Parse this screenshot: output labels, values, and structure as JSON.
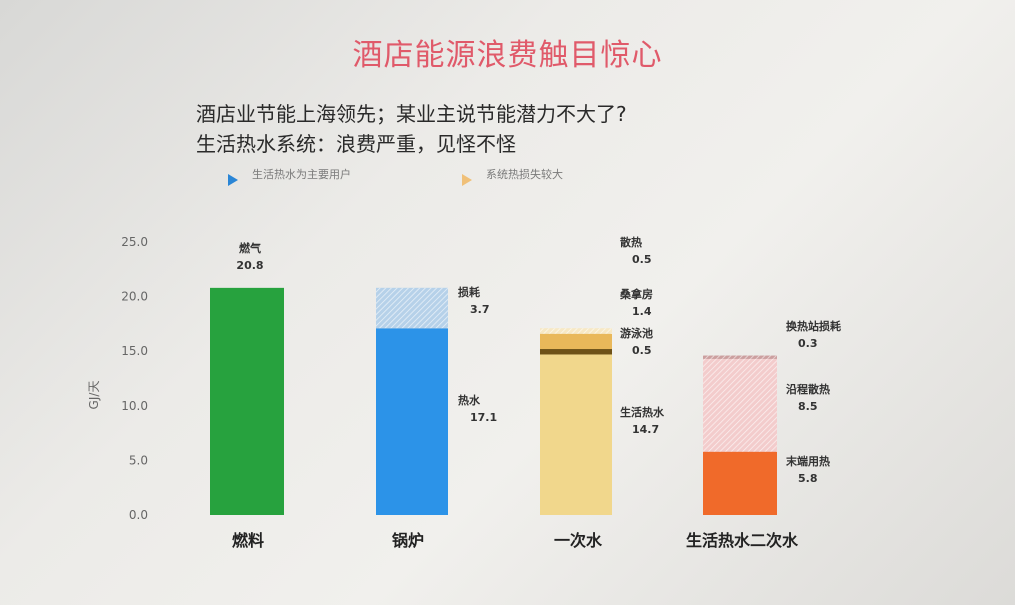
{
  "slide": {
    "title": "酒店能源浪费触目惊心",
    "subtitle_line1": "酒店业节能上海领先；某业主说节能潜力不大了?",
    "subtitle_line2": "生活热水系统：浪费严重，见怪不怪",
    "legend": [
      {
        "text": "生活热水为主要用户",
        "color": "#2a86d6"
      },
      {
        "text": "系统热损失较大",
        "color": "#f0c078"
      }
    ]
  },
  "chart_data": {
    "type": "bar",
    "stacked": true,
    "ylabel": "GJ/天",
    "ylim": [
      0,
      25
    ],
    "yticks": [
      "0.0",
      "5.0",
      "10.0",
      "15.0",
      "20.0",
      "25.0"
    ],
    "grid": false,
    "categories": [
      "燃料",
      "锅炉",
      "一次水",
      "生活热水二次水"
    ],
    "bars": [
      {
        "category": "燃料",
        "segments": [
          {
            "name": "燃气",
            "value": 20.8,
            "color": "#27a23e",
            "pattern": "solid"
          }
        ]
      },
      {
        "category": "锅炉",
        "segments": [
          {
            "name": "热水",
            "value": 17.1,
            "color": "#2c93e8",
            "pattern": "solid"
          },
          {
            "name": "损耗",
            "value": 3.7,
            "color": "#8fb8dd",
            "pattern": "hatch"
          }
        ]
      },
      {
        "category": "一次水",
        "segments": [
          {
            "name": "生活热水",
            "value": 14.7,
            "color": "#f1d78c",
            "pattern": "solid"
          },
          {
            "name": "游泳池",
            "value": 0.5,
            "color": "#6e5218",
            "pattern": "solid"
          },
          {
            "name": "桑拿房",
            "value": 1.4,
            "color": "#e9b85a",
            "pattern": "solid"
          },
          {
            "name": "散热",
            "value": 0.5,
            "color": "#f2dca4",
            "pattern": "hatch"
          }
        ]
      },
      {
        "category": "生活热水二次水",
        "segments": [
          {
            "name": "末端用热",
            "value": 5.8,
            "color": "#f06a2a",
            "pattern": "solid"
          },
          {
            "name": "沿程散热",
            "value": 8.5,
            "color": "#ecb0b0",
            "pattern": "hatch"
          },
          {
            "name": "换热站损耗",
            "value": 0.3,
            "color": "#b06b6b",
            "pattern": "hatch"
          }
        ]
      }
    ]
  }
}
